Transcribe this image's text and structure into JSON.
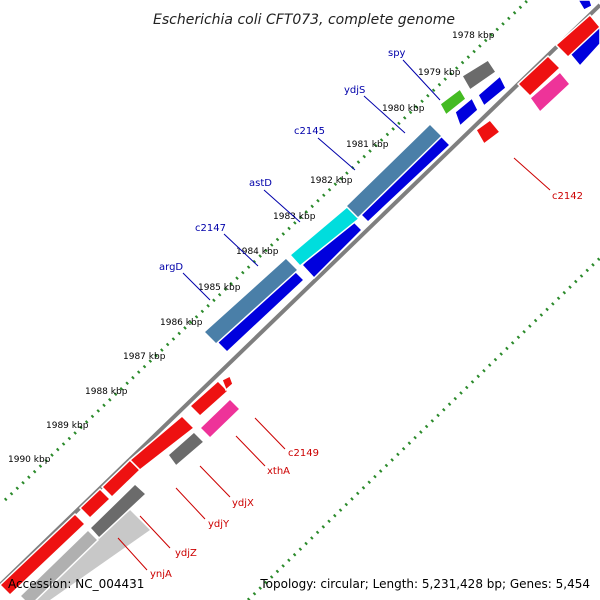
{
  "title": "Escherichia coli CFT073, complete genome",
  "footer": {
    "accession": "Accession: NC_004431",
    "topology": "Topology: circular; Length: 5,231,428 bp; Genes: 5,454"
  },
  "colors": {
    "backbone": "#7f7f7f",
    "dots": "#2b8a2b",
    "forward_cds": "#ee1111",
    "reverse_cds": "#0000dd",
    "rna_pink": "#ee3399",
    "gray_track": "#6b6b6b",
    "steel_blue": "#4a7fa8",
    "cyan": "#00dddd",
    "green": "#44bb22",
    "label_blue": "#0000aa",
    "label_red": "#cc0000"
  },
  "ticks": [
    {
      "kbp": 1978,
      "label": "1978 kbp"
    },
    {
      "kbp": 1979,
      "label": "1979 kbp"
    },
    {
      "kbp": 1980,
      "label": "1980 kbp"
    },
    {
      "kbp": 1981,
      "label": "1981 kbp"
    },
    {
      "kbp": 1982,
      "label": "1982 kbp"
    },
    {
      "kbp": 1983,
      "label": "1983 kbp"
    },
    {
      "kbp": 1984,
      "label": "1984 kbp"
    },
    {
      "kbp": 1985,
      "label": "1985 kbp"
    },
    {
      "kbp": 1986,
      "label": "1986 kbp"
    },
    {
      "kbp": 1987,
      "label": "1987 kbp"
    },
    {
      "kbp": 1988,
      "label": "1988 kbp"
    },
    {
      "kbp": 1989,
      "label": "1989 kbp"
    },
    {
      "kbp": 1990,
      "label": "1990 kbp"
    }
  ],
  "gene_labels_blue": [
    "spy",
    "ydjS",
    "c2145",
    "astD",
    "c2147",
    "argD"
  ],
  "gene_labels_red": [
    "c2142",
    "c2149",
    "xthA",
    "ydjX",
    "ydjY",
    "ydjZ",
    "ynjA"
  ]
}
